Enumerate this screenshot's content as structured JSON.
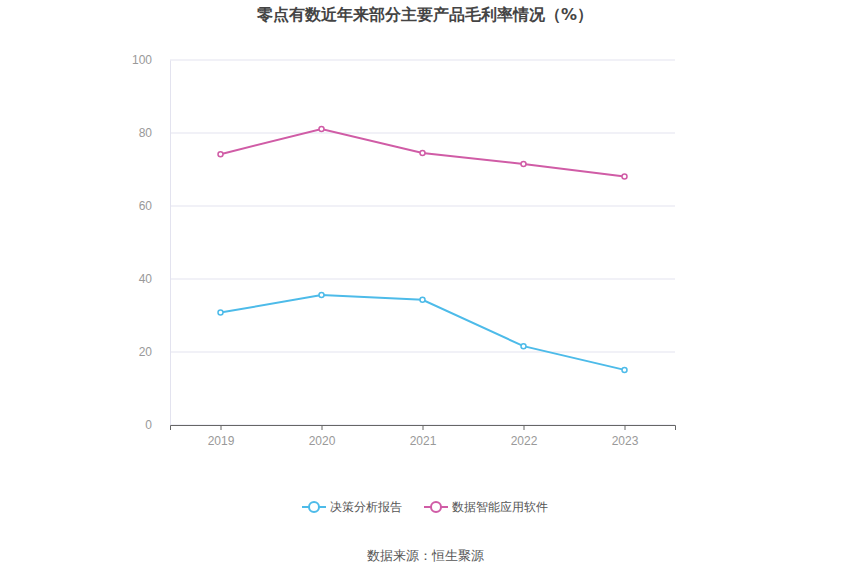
{
  "chart_data": {
    "type": "line",
    "title": "零点有数近年来部分主要产品毛利率情况（%）",
    "source": "数据来源：恒生聚源",
    "categories": [
      "2019",
      "2020",
      "2021",
      "2022",
      "2023"
    ],
    "series": [
      {
        "name": "决策分析报告",
        "color": "#4dbbe9",
        "marker": "circle",
        "values": [
          30.8,
          35.6,
          34.3,
          21.6,
          15.1
        ]
      },
      {
        "name": "数据智能应用软件",
        "color": "#d05ca6",
        "marker": "circle",
        "values": [
          74.2,
          81.1,
          74.5,
          71.5,
          68.1
        ]
      }
    ],
    "ylim": [
      0,
      100
    ],
    "yticks": [
      0,
      20,
      40,
      60,
      80,
      100
    ],
    "grid": true,
    "legend": "bottom"
  }
}
